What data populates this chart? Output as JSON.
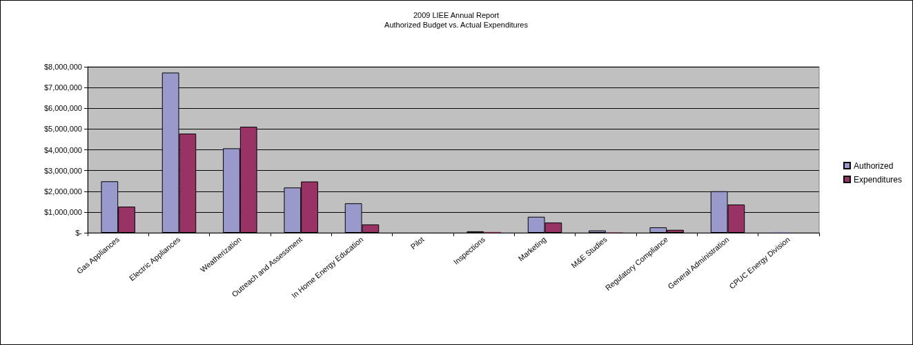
{
  "chart_data": {
    "type": "bar",
    "title": "2009 LIEE Annual Report",
    "subtitle": "Authorized Budget vs. Actual Expenditures",
    "categories": [
      "Gas Appliances",
      "Electric Appliances",
      "Weatherization",
      "Outreach and Assessment",
      "In Home Energy Education",
      "Pilot",
      "Inspections",
      "Marketing",
      "M&E Studies",
      "Regulatory Compliance",
      "General Administration",
      "CPUC Energy Division"
    ],
    "series": [
      {
        "name": "Authorized",
        "color": "#9999cc",
        "values": [
          2480000,
          7720000,
          4070000,
          2180000,
          1420000,
          null,
          70000,
          770000,
          110000,
          260000,
          2000000,
          40000
        ]
      },
      {
        "name": "Expenditures",
        "color": "#993366",
        "values": [
          1260000,
          4780000,
          5110000,
          2470000,
          400000,
          null,
          40000,
          490000,
          20000,
          140000,
          1360000,
          null
        ]
      }
    ],
    "ylim": [
      0,
      8000000
    ],
    "yticks": [
      {
        "value": 0,
        "label": "$-"
      },
      {
        "value": 1000000,
        "label": "$1,000,000"
      },
      {
        "value": 2000000,
        "label": "$2,000,000"
      },
      {
        "value": 3000000,
        "label": "$3,000,000"
      },
      {
        "value": 4000000,
        "label": "$4,000,000"
      },
      {
        "value": 5000000,
        "label": "$5,000,000"
      },
      {
        "value": 6000000,
        "label": "$6,000,000"
      },
      {
        "value": 7000000,
        "label": "$7,000,000"
      },
      {
        "value": 8000000,
        "label": "$8,000,000"
      }
    ],
    "grid": "y",
    "legend": "right"
  }
}
